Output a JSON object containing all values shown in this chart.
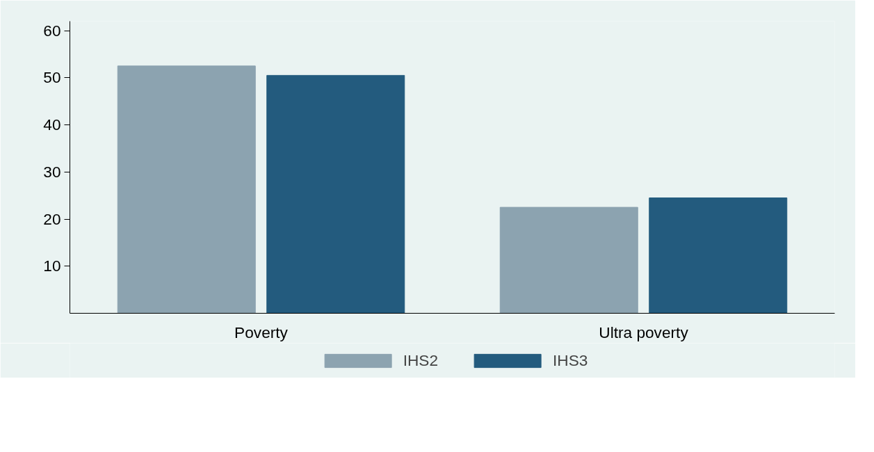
{
  "chart_data": {
    "type": "bar",
    "categories": [
      "Poverty",
      "Ultra poverty"
    ],
    "series": [
      {
        "name": "IHS2",
        "color": "#8ca3b0",
        "values": [
          52.5,
          22.5
        ]
      },
      {
        "name": "IHS3",
        "color": "#235b7e",
        "values": [
          50.5,
          24.5
        ]
      }
    ],
    "ylim": [
      0,
      62
    ],
    "yticks": [
      10,
      20,
      30,
      40,
      50,
      60
    ],
    "grid": false,
    "legend": "bottom"
  }
}
